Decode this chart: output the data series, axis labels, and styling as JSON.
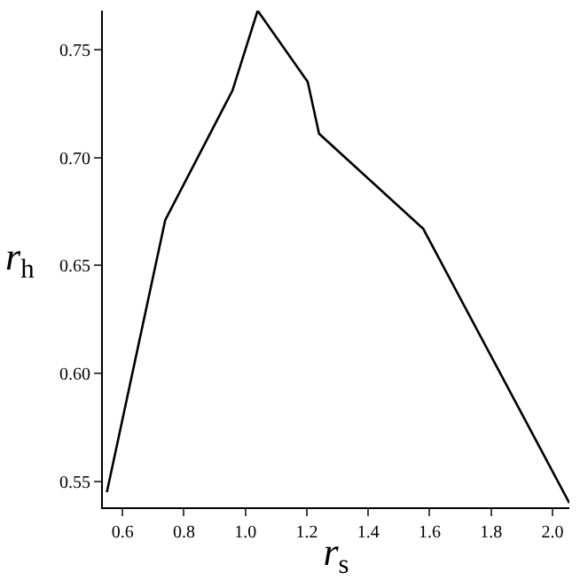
{
  "chart_data": {
    "type": "line",
    "xlabel": "r$_{s}$",
    "ylabel": "r$_{h}$",
    "x": [
      0.549,
      0.739,
      0.958,
      1.04,
      1.203,
      1.24,
      1.579,
      2.055
    ],
    "series": [
      {
        "color": "#000000",
        "values": [
          0.545,
          0.671,
          0.731,
          0.768,
          0.735,
          0.711,
          0.667,
          0.54
        ]
      }
    ],
    "xlim": [
      0.536,
      2.055
    ],
    "ylim": [
      0.538,
      0.768
    ],
    "xticks": [
      {
        "value": 0.6,
        "label": "0.6"
      },
      {
        "value": 0.8,
        "label": "0.8"
      },
      {
        "value": 1.0,
        "label": "1.0"
      },
      {
        "value": 1.2,
        "label": "1.2"
      },
      {
        "value": 1.4,
        "label": "1.4"
      },
      {
        "value": 1.6,
        "label": "1.6"
      },
      {
        "value": 1.8,
        "label": "1.8"
      },
      {
        "value": 2.0,
        "label": "2.0"
      }
    ],
    "yticks": [
      {
        "value": 0.55,
        "label": "0.55"
      },
      {
        "value": 0.6,
        "label": "0.60"
      },
      {
        "value": 0.65,
        "label": "0.65"
      },
      {
        "value": 0.7,
        "label": "0.70"
      },
      {
        "value": 0.75,
        "label": "0.75"
      }
    ],
    "legend": false,
    "marker": "none",
    "line_style": "solid"
  }
}
